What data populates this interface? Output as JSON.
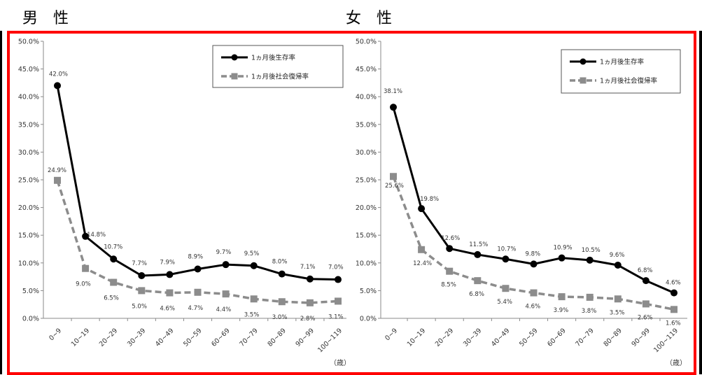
{
  "headings": {
    "male": "男　性",
    "female": "女　性"
  },
  "chart_data": [
    {
      "type": "line",
      "panel": "male",
      "categories": [
        "0~9",
        "10~19",
        "20~29",
        "30~39",
        "40~49",
        "50~59",
        "60~69",
        "70~79",
        "80~89",
        "90~99",
        "100~119"
      ],
      "series": [
        {
          "name": "1ヵ月後生存率",
          "values": [
            42.0,
            14.8,
            10.7,
            7.7,
            7.9,
            8.9,
            9.7,
            9.5,
            8.0,
            7.1,
            7.0
          ],
          "labels": [
            "42.0%",
            "14.8%",
            "10.7%",
            "7.7%",
            "7.9%",
            "8.9%",
            "9.7%",
            "9.5%",
            "8.0%",
            "7.1%",
            "7.0%"
          ],
          "color": "#000000",
          "style": "solid",
          "marker": "circle"
        },
        {
          "name": "1ヵ月後社会復帰率",
          "values": [
            24.9,
            9.0,
            6.5,
            5.0,
            4.6,
            4.7,
            4.4,
            3.5,
            3.0,
            2.8,
            3.1
          ],
          "labels": [
            "24.9%",
            "9.0%",
            "6.5%",
            "5.0%",
            "4.6%",
            "4.7%",
            "4.4%",
            "3.5%",
            "3.0%",
            "2.8%",
            "3.1%"
          ],
          "color": "#8c8c8c",
          "style": "dashed",
          "marker": "square"
        }
      ],
      "ylim": [
        0,
        50
      ],
      "yticks": [
        "0.0%",
        "5.0%",
        "10.0%",
        "15.0%",
        "20.0%",
        "25.0%",
        "30.0%",
        "35.0%",
        "40.0%",
        "45.0%",
        "50.0%"
      ],
      "xlabel": "（歳）",
      "legend": "top-right",
      "grid": false
    },
    {
      "type": "line",
      "panel": "female",
      "categories": [
        "0~9",
        "10~19",
        "20~29",
        "30~39",
        "40~49",
        "50~59",
        "60~69",
        "70~79",
        "80~89",
        "90~99",
        "100~119"
      ],
      "series": [
        {
          "name": "1ヵ月後生存率",
          "values": [
            38.1,
            19.8,
            12.6,
            11.5,
            10.7,
            9.8,
            10.9,
            10.5,
            9.6,
            6.8,
            4.6
          ],
          "labels": [
            "38.1%",
            "19.8%",
            "12.6%",
            "11.5%",
            "10.7%",
            "9.8%",
            "10.9%",
            "10.5%",
            "9.6%",
            "6.8%",
            "4.6%"
          ],
          "color": "#000000",
          "style": "solid",
          "marker": "circle"
        },
        {
          "name": "1ヵ月後社会復帰率",
          "values": [
            25.6,
            12.4,
            8.5,
            6.8,
            5.4,
            4.6,
            3.9,
            3.8,
            3.5,
            2.6,
            1.6
          ],
          "labels": [
            "25.6%",
            "12.4%",
            "8.5%",
            "6.8%",
            "5.4%",
            "4.6%",
            "3.9%",
            "3.8%",
            "3.5%",
            "2.6%",
            "1.6%"
          ],
          "color": "#8c8c8c",
          "style": "dashed",
          "marker": "square"
        }
      ],
      "ylim": [
        0,
        50
      ],
      "yticks": [
        "0.0%",
        "5.0%",
        "10.0%",
        "15.0%",
        "20.0%",
        "25.0%",
        "30.0%",
        "35.0%",
        "40.0%",
        "45.0%",
        "50.0%"
      ],
      "xlabel": "（歳）",
      "legend": "top-right",
      "grid": false
    }
  ]
}
